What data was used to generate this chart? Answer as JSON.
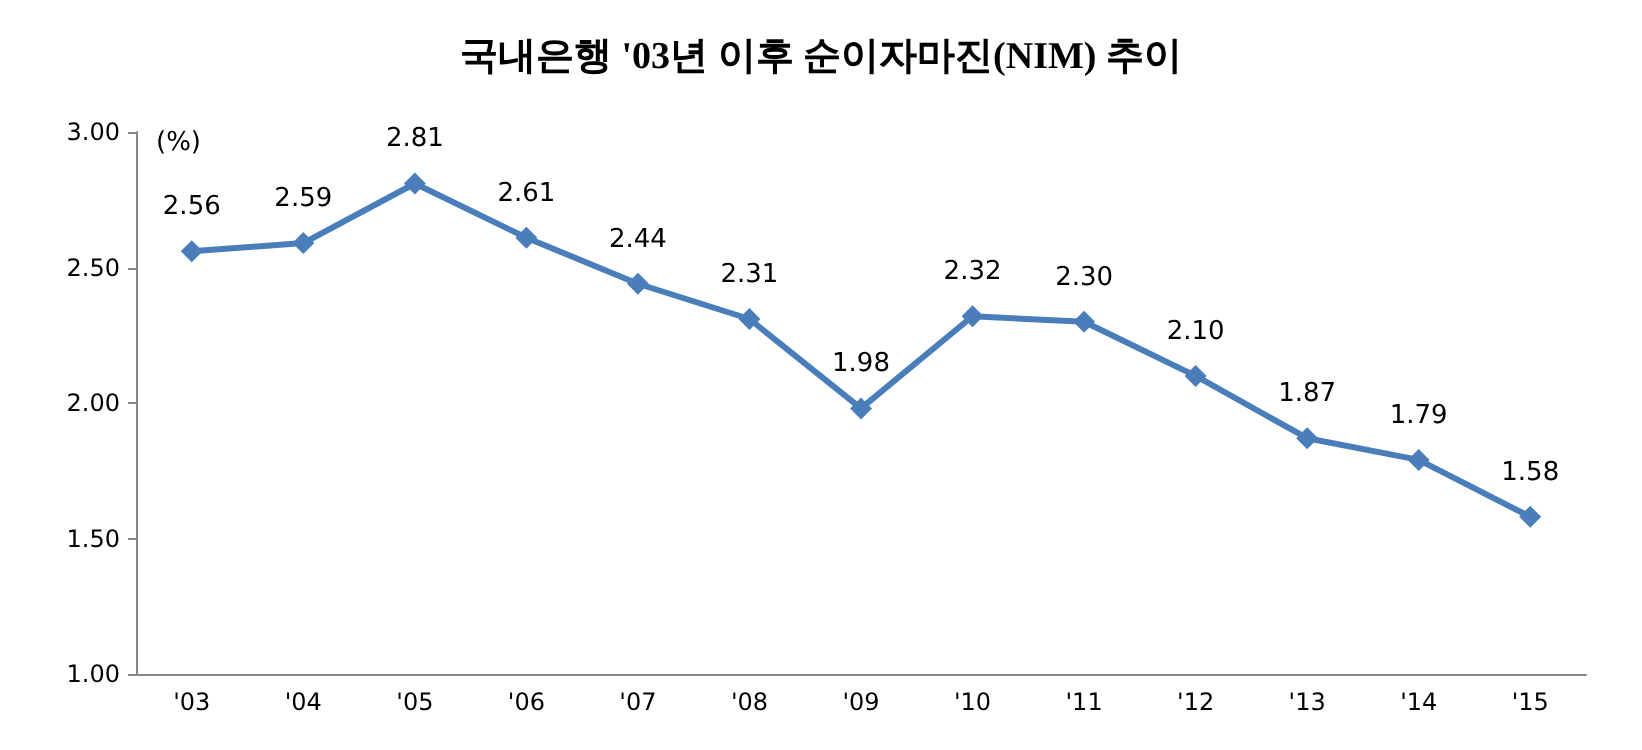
{
  "chart_data": {
    "type": "line",
    "title": "국내은행 '03년 이후 순이자마진(NIM) 추이",
    "ylabel": "(%)",
    "categories": [
      "'03",
      "'04",
      "'05",
      "'06",
      "'07",
      "'08",
      "'09",
      "'10",
      "'11",
      "'12",
      "'13",
      "'14",
      "'15"
    ],
    "series": [
      {
        "color": "#4a7ebb",
        "values": [
          2.56,
          2.59,
          2.81,
          2.61,
          2.44,
          2.31,
          1.98,
          2.32,
          2.3,
          2.1,
          1.87,
          1.79,
          1.58
        ],
        "value_labels": [
          "2.56",
          "2.59",
          "2.81",
          "2.61",
          "2.44",
          "2.31",
          "1.98",
          "2.32",
          "2.30",
          "2.10",
          "1.87",
          "1.79",
          "1.58"
        ]
      }
    ],
    "ylim": [
      1,
      3
    ],
    "yticks": [
      {
        "value": 1,
        "label": "1.00"
      },
      {
        "value": 1.5,
        "label": "1.50"
      },
      {
        "value": 2,
        "label": "2.00"
      },
      {
        "value": 2.5,
        "label": "2.50"
      },
      {
        "value": 3,
        "label": "3.00"
      }
    ],
    "marker": "diamond",
    "line_style": "solid",
    "grid": false
  }
}
